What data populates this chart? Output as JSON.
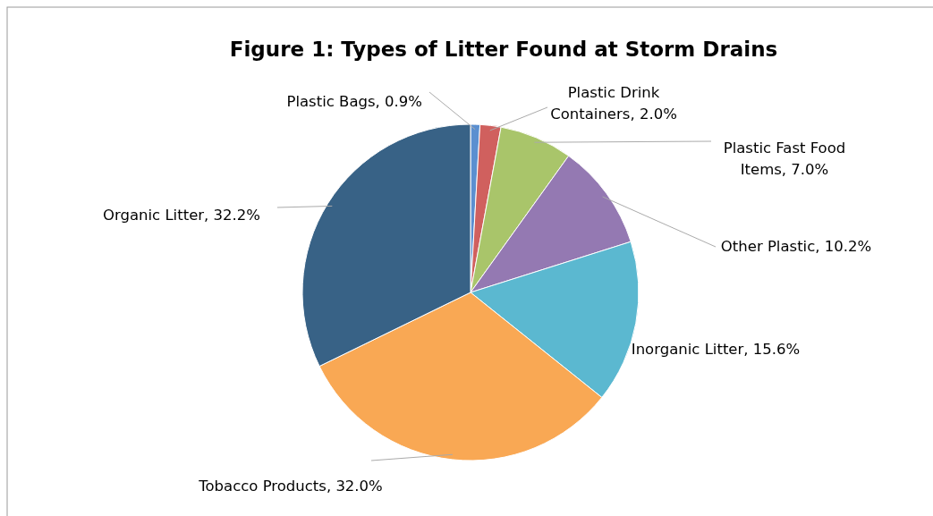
{
  "chart_data": {
    "type": "pie",
    "title": "Figure 1: Types of Litter Found at Storm Drains",
    "categories": [
      "Plastic Bags",
      "Plastic Drink Containers",
      "Plastic Fast Food Items",
      "Other Plastic",
      "Inorganic Litter",
      "Tobacco Products",
      "Organic Litter"
    ],
    "values": [
      0.9,
      2.0,
      7.0,
      10.2,
      15.6,
      32.0,
      32.2
    ],
    "value_labels": [
      "0.9%",
      "2.0%",
      "7.0%",
      "10.2%",
      "15.6%",
      "32.0%",
      "32.2%"
    ],
    "colors": [
      "#5b8fd0",
      "#d0605e",
      "#a9c56a",
      "#9479b2",
      "#5bb8d0",
      "#f9a854",
      "#386286"
    ]
  }
}
